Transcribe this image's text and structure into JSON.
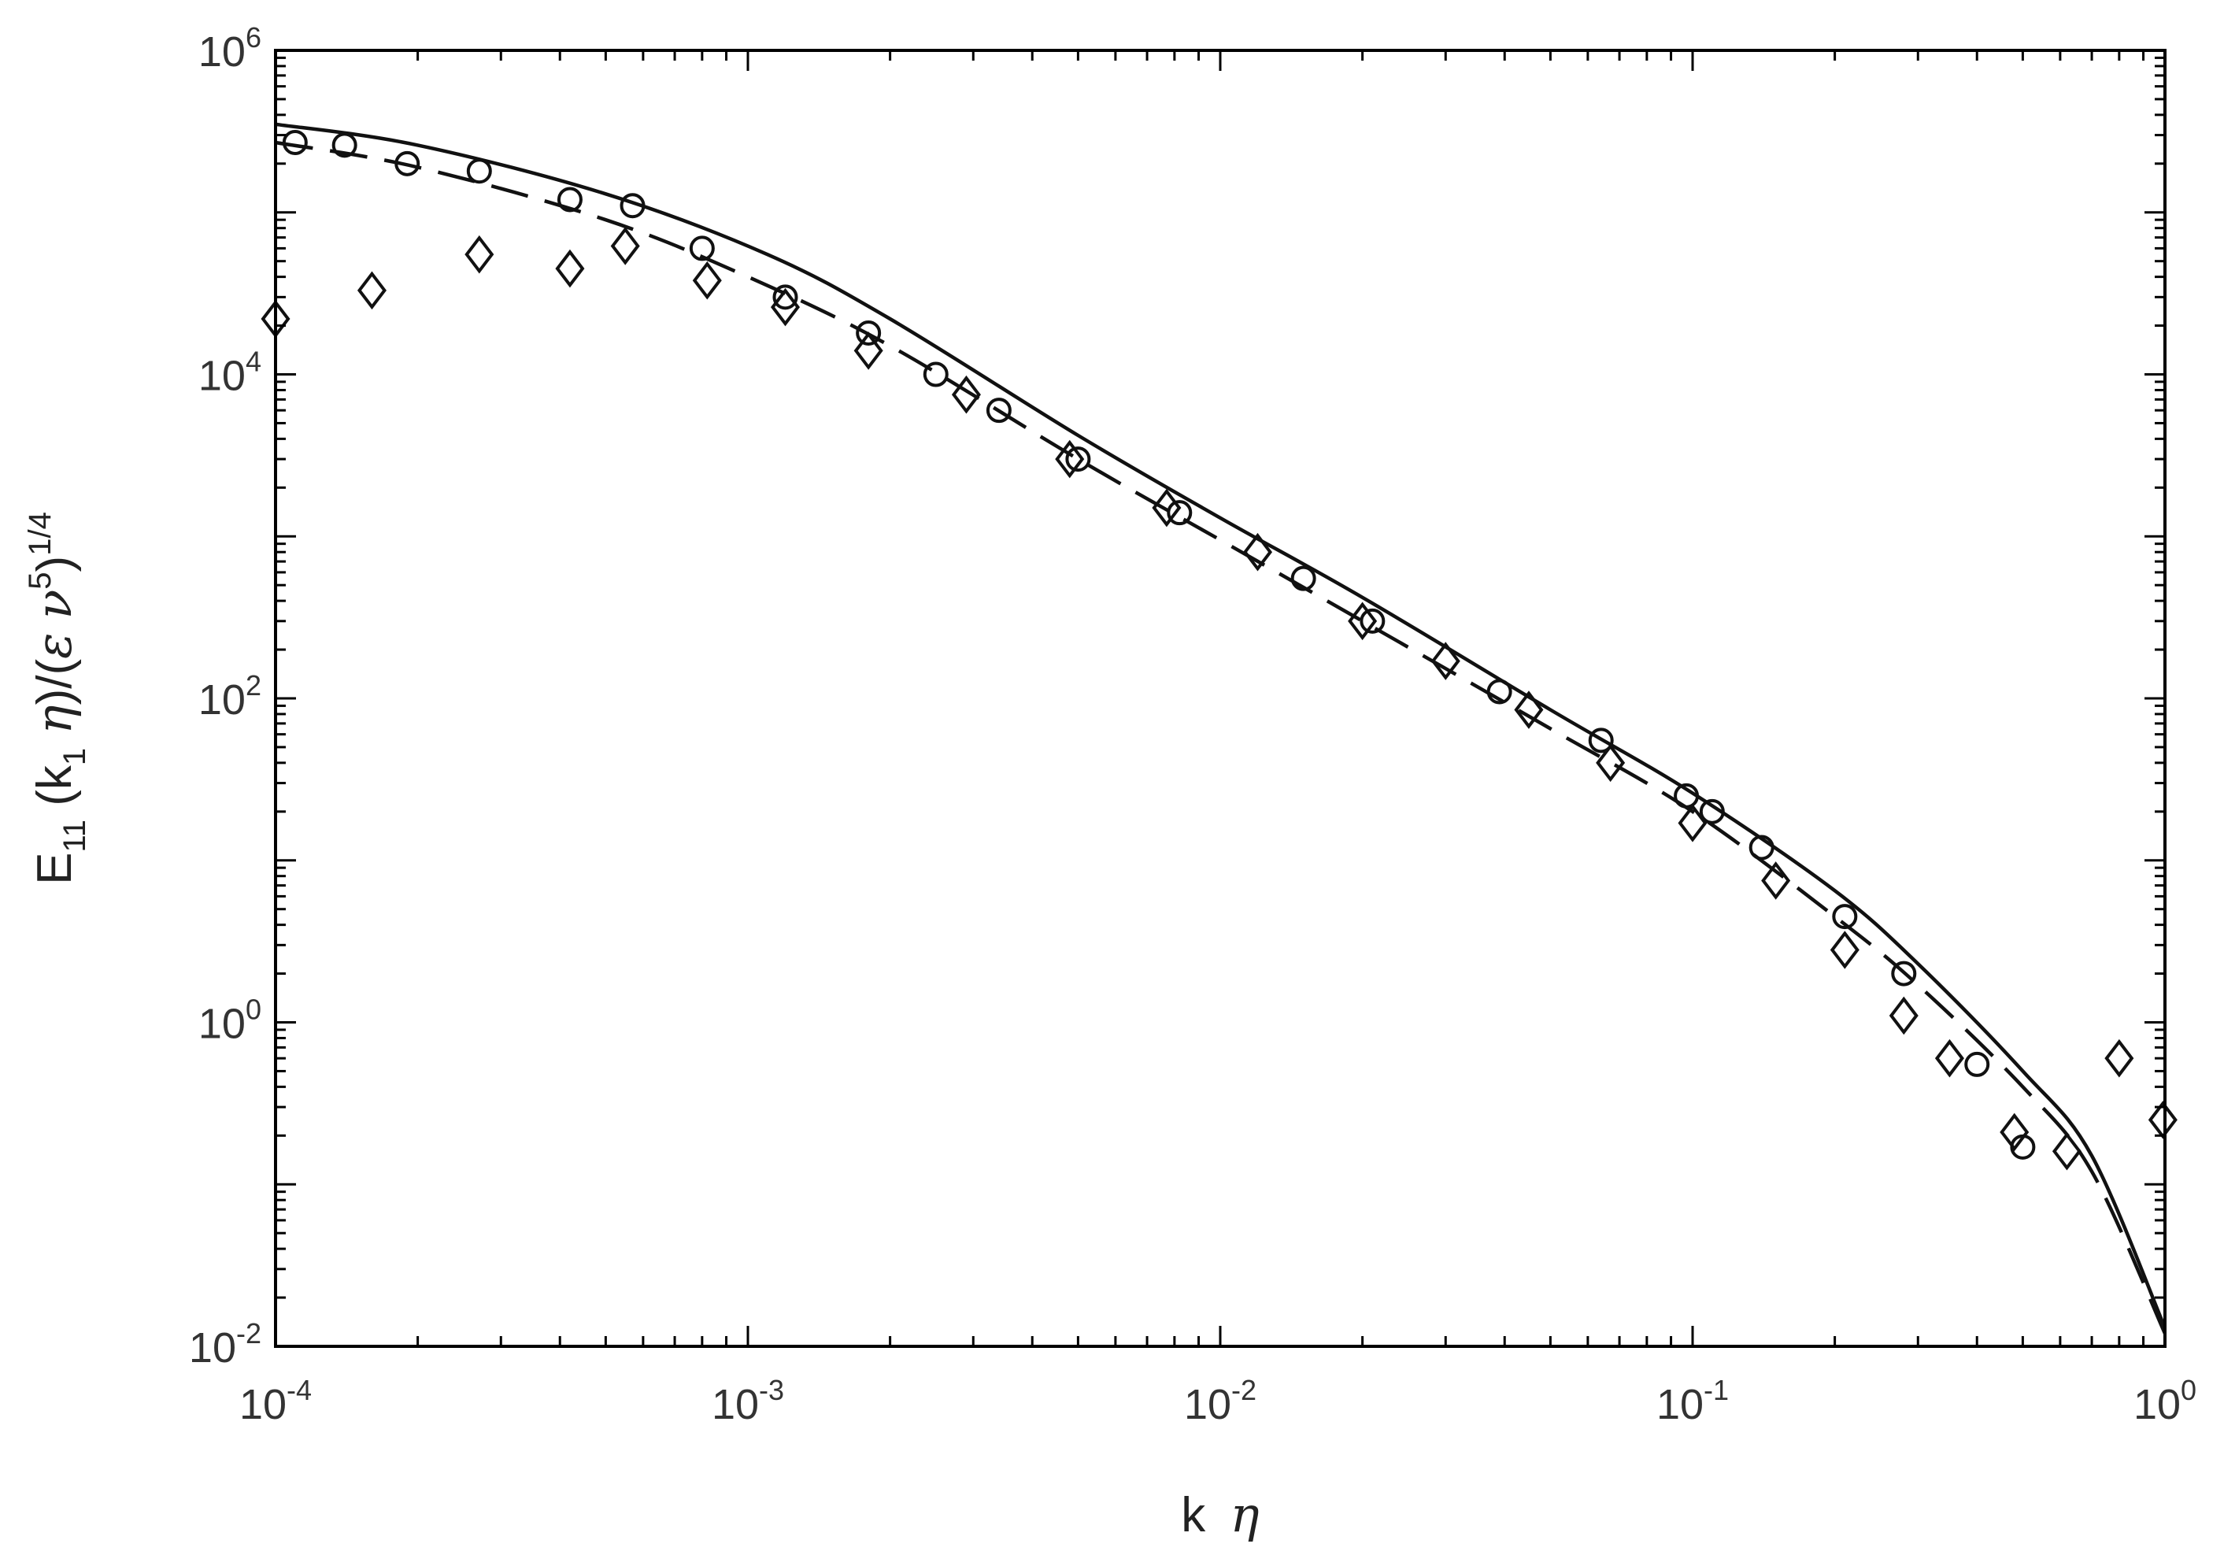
{
  "chart_data": {
    "type": "scatter",
    "title": "",
    "xlabel": {
      "main": "k",
      "greek": "η"
    },
    "ylabel": {
      "p1": "E",
      "s1": "11",
      "p2": " (k",
      "s2": "1",
      "p3": " ",
      "g1": "η",
      "p4": ")/(",
      "g2": "ε",
      "p5": " ",
      "g3": "ν",
      "sup1": "5",
      "p6": ")",
      "sup2": "1/4"
    },
    "xscale": "log",
    "yscale": "log",
    "xlim": [
      0.0001,
      1
    ],
    "ylim": [
      0.01,
      1000000
    ],
    "xticks": [
      {
        "base": "10",
        "exp": "-4",
        "value": 0.0001
      },
      {
        "base": "10",
        "exp": "-3",
        "value": 0.001
      },
      {
        "base": "10",
        "exp": "-2",
        "value": 0.01
      },
      {
        "base": "10",
        "exp": "-1",
        "value": 0.1
      },
      {
        "base": "10",
        "exp": "0",
        "value": 1
      }
    ],
    "yticks": [
      {
        "base": "10",
        "exp": "-2",
        "value": 0.01
      },
      {
        "base": "10",
        "exp": "0",
        "value": 1
      },
      {
        "base": "10",
        "exp": "2",
        "value": 100
      },
      {
        "base": "10",
        "exp": "4",
        "value": 10000
      },
      {
        "base": "10",
        "exp": "6",
        "value": 1000000
      }
    ],
    "grid": false,
    "legend": "none",
    "series": [
      {
        "style": "solid-line",
        "x": [
          0.0001,
          0.0002,
          0.0005,
          0.0011,
          0.002,
          0.005,
          0.01,
          0.02,
          0.05,
          0.1,
          0.2,
          0.3,
          0.5,
          0.7,
          1.0
        ],
        "y": [
          350000,
          260000,
          130000,
          55000,
          22000,
          4200,
          1300,
          420,
          85,
          26,
          6.5,
          2.3,
          0.5,
          0.15,
          0.013
        ]
      },
      {
        "style": "dashed-line",
        "x": [
          0.0001,
          0.0002,
          0.0005,
          0.001,
          0.002,
          0.005,
          0.01,
          0.02,
          0.05,
          0.1,
          0.2,
          0.3,
          0.5,
          0.7,
          1.0
        ],
        "y": [
          270000,
          190000,
          90000,
          40000,
          15000,
          3000,
          950,
          300,
          65,
          20,
          4.5,
          1.7,
          0.4,
          0.12,
          0.012
        ]
      },
      {
        "style": "circle-markers",
        "x": [
          0.00011,
          0.00014,
          0.00019,
          0.00027,
          0.00042,
          0.00057,
          0.0008,
          0.0012,
          0.0018,
          0.0025,
          0.0034,
          0.005,
          0.0082,
          0.015,
          0.021,
          0.039,
          0.064,
          0.097,
          0.11,
          0.14,
          0.21,
          0.28,
          0.4,
          0.5
        ],
        "y": [
          270000,
          260000,
          200000,
          180000,
          120000,
          110000,
          60000,
          30000,
          18000,
          10000,
          6000,
          3000,
          1400,
          550,
          300,
          110,
          55,
          25,
          20,
          12,
          4.5,
          2,
          0.55,
          0.17
        ]
      },
      {
        "style": "diamond-markers",
        "x": [
          0.0001,
          0.00016,
          0.00027,
          0.00042,
          0.00055,
          0.00082,
          0.0012,
          0.0018,
          0.0029,
          0.0048,
          0.0077,
          0.012,
          0.02,
          0.03,
          0.045,
          0.067,
          0.1,
          0.15,
          0.21,
          0.28,
          0.35,
          0.48,
          0.62,
          0.8,
          0.99
        ],
        "y": [
          22000,
          33000,
          55000,
          45000,
          62000,
          38000,
          26000,
          14000,
          7500,
          3000,
          1500,
          800,
          300,
          170,
          85,
          40,
          17,
          7.5,
          2.8,
          1.1,
          0.6,
          0.21,
          0.16,
          0.6,
          0.25
        ]
      }
    ]
  }
}
